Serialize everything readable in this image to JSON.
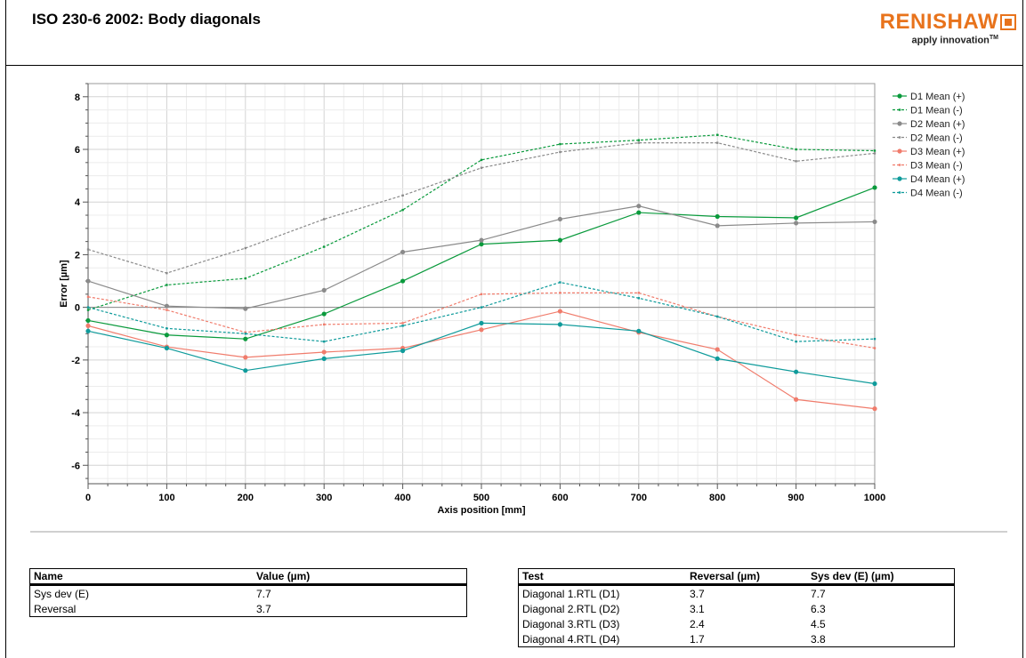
{
  "header": {
    "title": "ISO 230-6 2002: Body diagonals",
    "logo_name": "RENISHAW",
    "tagline": "apply innovation",
    "tagline_tm": "TM",
    "logo_color": "#e8731c"
  },
  "chart_data": {
    "type": "line",
    "title": "",
    "xlabel": "Axis position [mm]",
    "ylabel": "Error [µm]",
    "xlim": [
      0,
      1000
    ],
    "ylim": [
      -6.7,
      8.5
    ],
    "x_ticks": [
      0,
      100,
      200,
      300,
      400,
      500,
      600,
      700,
      800,
      900,
      1000
    ],
    "y_ticks": [
      -6,
      -4,
      -2,
      0,
      2,
      4,
      6,
      8
    ],
    "grid": true,
    "legend_position": "right",
    "x": [
      0,
      100,
      200,
      300,
      400,
      500,
      600,
      700,
      800,
      900,
      1000
    ],
    "series": [
      {
        "name": "D1 Mean (+)",
        "color": "#0a9a3c",
        "dashed": false,
        "values": [
          -0.5,
          -1.05,
          -1.2,
          -0.25,
          1.0,
          2.4,
          2.55,
          3.6,
          3.45,
          3.4,
          4.55
        ]
      },
      {
        "name": "D1 Mean (-)",
        "color": "#0a9a3c",
        "dashed": true,
        "values": [
          -0.1,
          0.85,
          1.1,
          2.3,
          3.7,
          5.6,
          6.2,
          6.35,
          6.55,
          6.0,
          5.95
        ]
      },
      {
        "name": "D2 Mean (+)",
        "color": "#8a8a8a",
        "dashed": false,
        "values": [
          1.0,
          0.05,
          -0.05,
          0.65,
          2.1,
          2.55,
          3.35,
          3.85,
          3.1,
          3.2,
          3.25
        ]
      },
      {
        "name": "D2 Mean (-)",
        "color": "#8a8a8a",
        "dashed": true,
        "values": [
          2.2,
          1.3,
          2.25,
          3.35,
          4.25,
          5.3,
          5.9,
          6.25,
          6.25,
          5.55,
          5.85
        ]
      },
      {
        "name": "D3 Mean (+)",
        "color": "#f07c6c",
        "dashed": false,
        "values": [
          -0.7,
          -1.5,
          -1.9,
          -1.7,
          -1.55,
          -0.85,
          -0.15,
          -0.95,
          -1.6,
          -3.5,
          -3.85
        ]
      },
      {
        "name": "D3 Mean (-)",
        "color": "#f07c6c",
        "dashed": true,
        "values": [
          0.4,
          -0.1,
          -0.95,
          -0.65,
          -0.6,
          0.5,
          0.55,
          0.55,
          -0.35,
          -1.05,
          -1.55
        ]
      },
      {
        "name": "D4 Mean (+)",
        "color": "#0f9b9b",
        "dashed": false,
        "values": [
          -0.9,
          -1.55,
          -2.4,
          -1.95,
          -1.65,
          -0.6,
          -0.65,
          -0.9,
          -1.95,
          -2.45,
          -2.9
        ]
      },
      {
        "name": "D4 Mean (-)",
        "color": "#0f9b9b",
        "dashed": true,
        "values": [
          0.0,
          -0.8,
          -1.0,
          -1.3,
          -0.7,
          0.0,
          0.95,
          0.35,
          -0.35,
          -1.3,
          -1.2
        ]
      }
    ]
  },
  "summary_table": {
    "headers": [
      "Name",
      "Value (µm)"
    ],
    "rows": [
      [
        "Sys dev (E)",
        "7.7"
      ],
      [
        "Reversal",
        "3.7"
      ]
    ]
  },
  "diagonal_table": {
    "headers": [
      "Test",
      "Reversal (µm)",
      "Sys dev (E) (µm)"
    ],
    "rows": [
      [
        "Diagonal 1.RTL (D1)",
        "3.7",
        "7.7"
      ],
      [
        "Diagonal 2.RTL (D2)",
        "3.1",
        "6.3"
      ],
      [
        "Diagonal 3.RTL (D3)",
        "2.4",
        "4.5"
      ],
      [
        "Diagonal 4.RTL (D4)",
        "1.7",
        "3.8"
      ]
    ]
  }
}
